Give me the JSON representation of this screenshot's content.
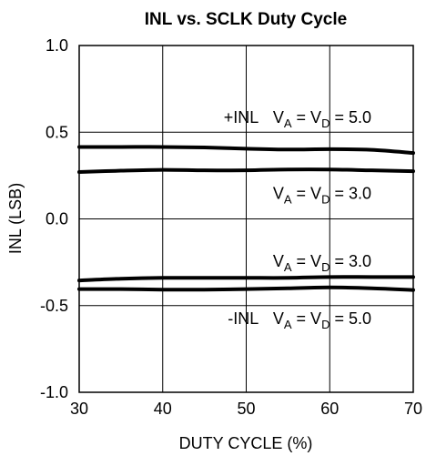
{
  "chart_data": {
    "type": "line",
    "title": "INL vs. SCLK Duty Cycle",
    "xlabel": "DUTY CYCLE (%)",
    "ylabel": "INL (LSB)",
    "xlim": [
      30,
      70
    ],
    "ylim": [
      -1.0,
      1.0
    ],
    "xticks": [
      "30",
      "40",
      "50",
      "60",
      "70"
    ],
    "yticks": [
      "1.0",
      "0.5",
      "0.0",
      "-0.5",
      "-1.0"
    ],
    "grid": true,
    "series": [
      {
        "x": [
          30,
          35,
          40,
          45,
          50,
          55,
          60,
          65,
          70
        ],
        "y": [
          0.415,
          0.415,
          0.415,
          0.412,
          0.405,
          0.4,
          0.402,
          0.398,
          0.38
        ]
      },
      {
        "x": [
          30,
          35,
          40,
          45,
          50,
          55,
          60,
          65,
          70
        ],
        "y": [
          0.27,
          0.278,
          0.283,
          0.28,
          0.28,
          0.285,
          0.285,
          0.28,
          0.275
        ]
      },
      {
        "x": [
          30,
          35,
          40,
          45,
          50,
          55,
          60,
          65,
          70
        ],
        "y": [
          -0.355,
          -0.345,
          -0.34,
          -0.34,
          -0.34,
          -0.34,
          -0.335,
          -0.335,
          -0.335
        ]
      },
      {
        "x": [
          30,
          35,
          40,
          45,
          50,
          55,
          60,
          65,
          70
        ],
        "y": [
          -0.405,
          -0.405,
          -0.408,
          -0.408,
          -0.405,
          -0.4,
          -0.395,
          -0.4,
          -0.41
        ]
      }
    ],
    "annotations": [
      {
        "x": 51.5,
        "y": 0.555,
        "anchor": "end",
        "parts": [
          {
            "t": "+INL"
          }
        ]
      },
      {
        "x": 53.2,
        "y": 0.555,
        "anchor": "start",
        "parts": [
          {
            "t": "V"
          },
          {
            "t": "A",
            "sub": true
          },
          {
            "t": " = V"
          },
          {
            "t": "D",
            "sub": true
          },
          {
            "t": " = 5.0"
          }
        ]
      },
      {
        "x": 53.2,
        "y": 0.115,
        "anchor": "start",
        "parts": [
          {
            "t": "V"
          },
          {
            "t": "A",
            "sub": true
          },
          {
            "t": " = V"
          },
          {
            "t": "D",
            "sub": true
          },
          {
            "t": " = 3.0"
          }
        ]
      },
      {
        "x": 53.2,
        "y": -0.275,
        "anchor": "start",
        "parts": [
          {
            "t": "V"
          },
          {
            "t": "A",
            "sub": true
          },
          {
            "t": " = V"
          },
          {
            "t": "D",
            "sub": true
          },
          {
            "t": " = 3.0"
          }
        ]
      },
      {
        "x": 51.5,
        "y": -0.605,
        "anchor": "end",
        "parts": [
          {
            "t": "-INL"
          }
        ]
      },
      {
        "x": 53.2,
        "y": -0.605,
        "anchor": "start",
        "parts": [
          {
            "t": "V"
          },
          {
            "t": "A",
            "sub": true
          },
          {
            "t": " = V"
          },
          {
            "t": "D",
            "sub": true
          },
          {
            "t": " = 5.0"
          }
        ]
      }
    ]
  }
}
